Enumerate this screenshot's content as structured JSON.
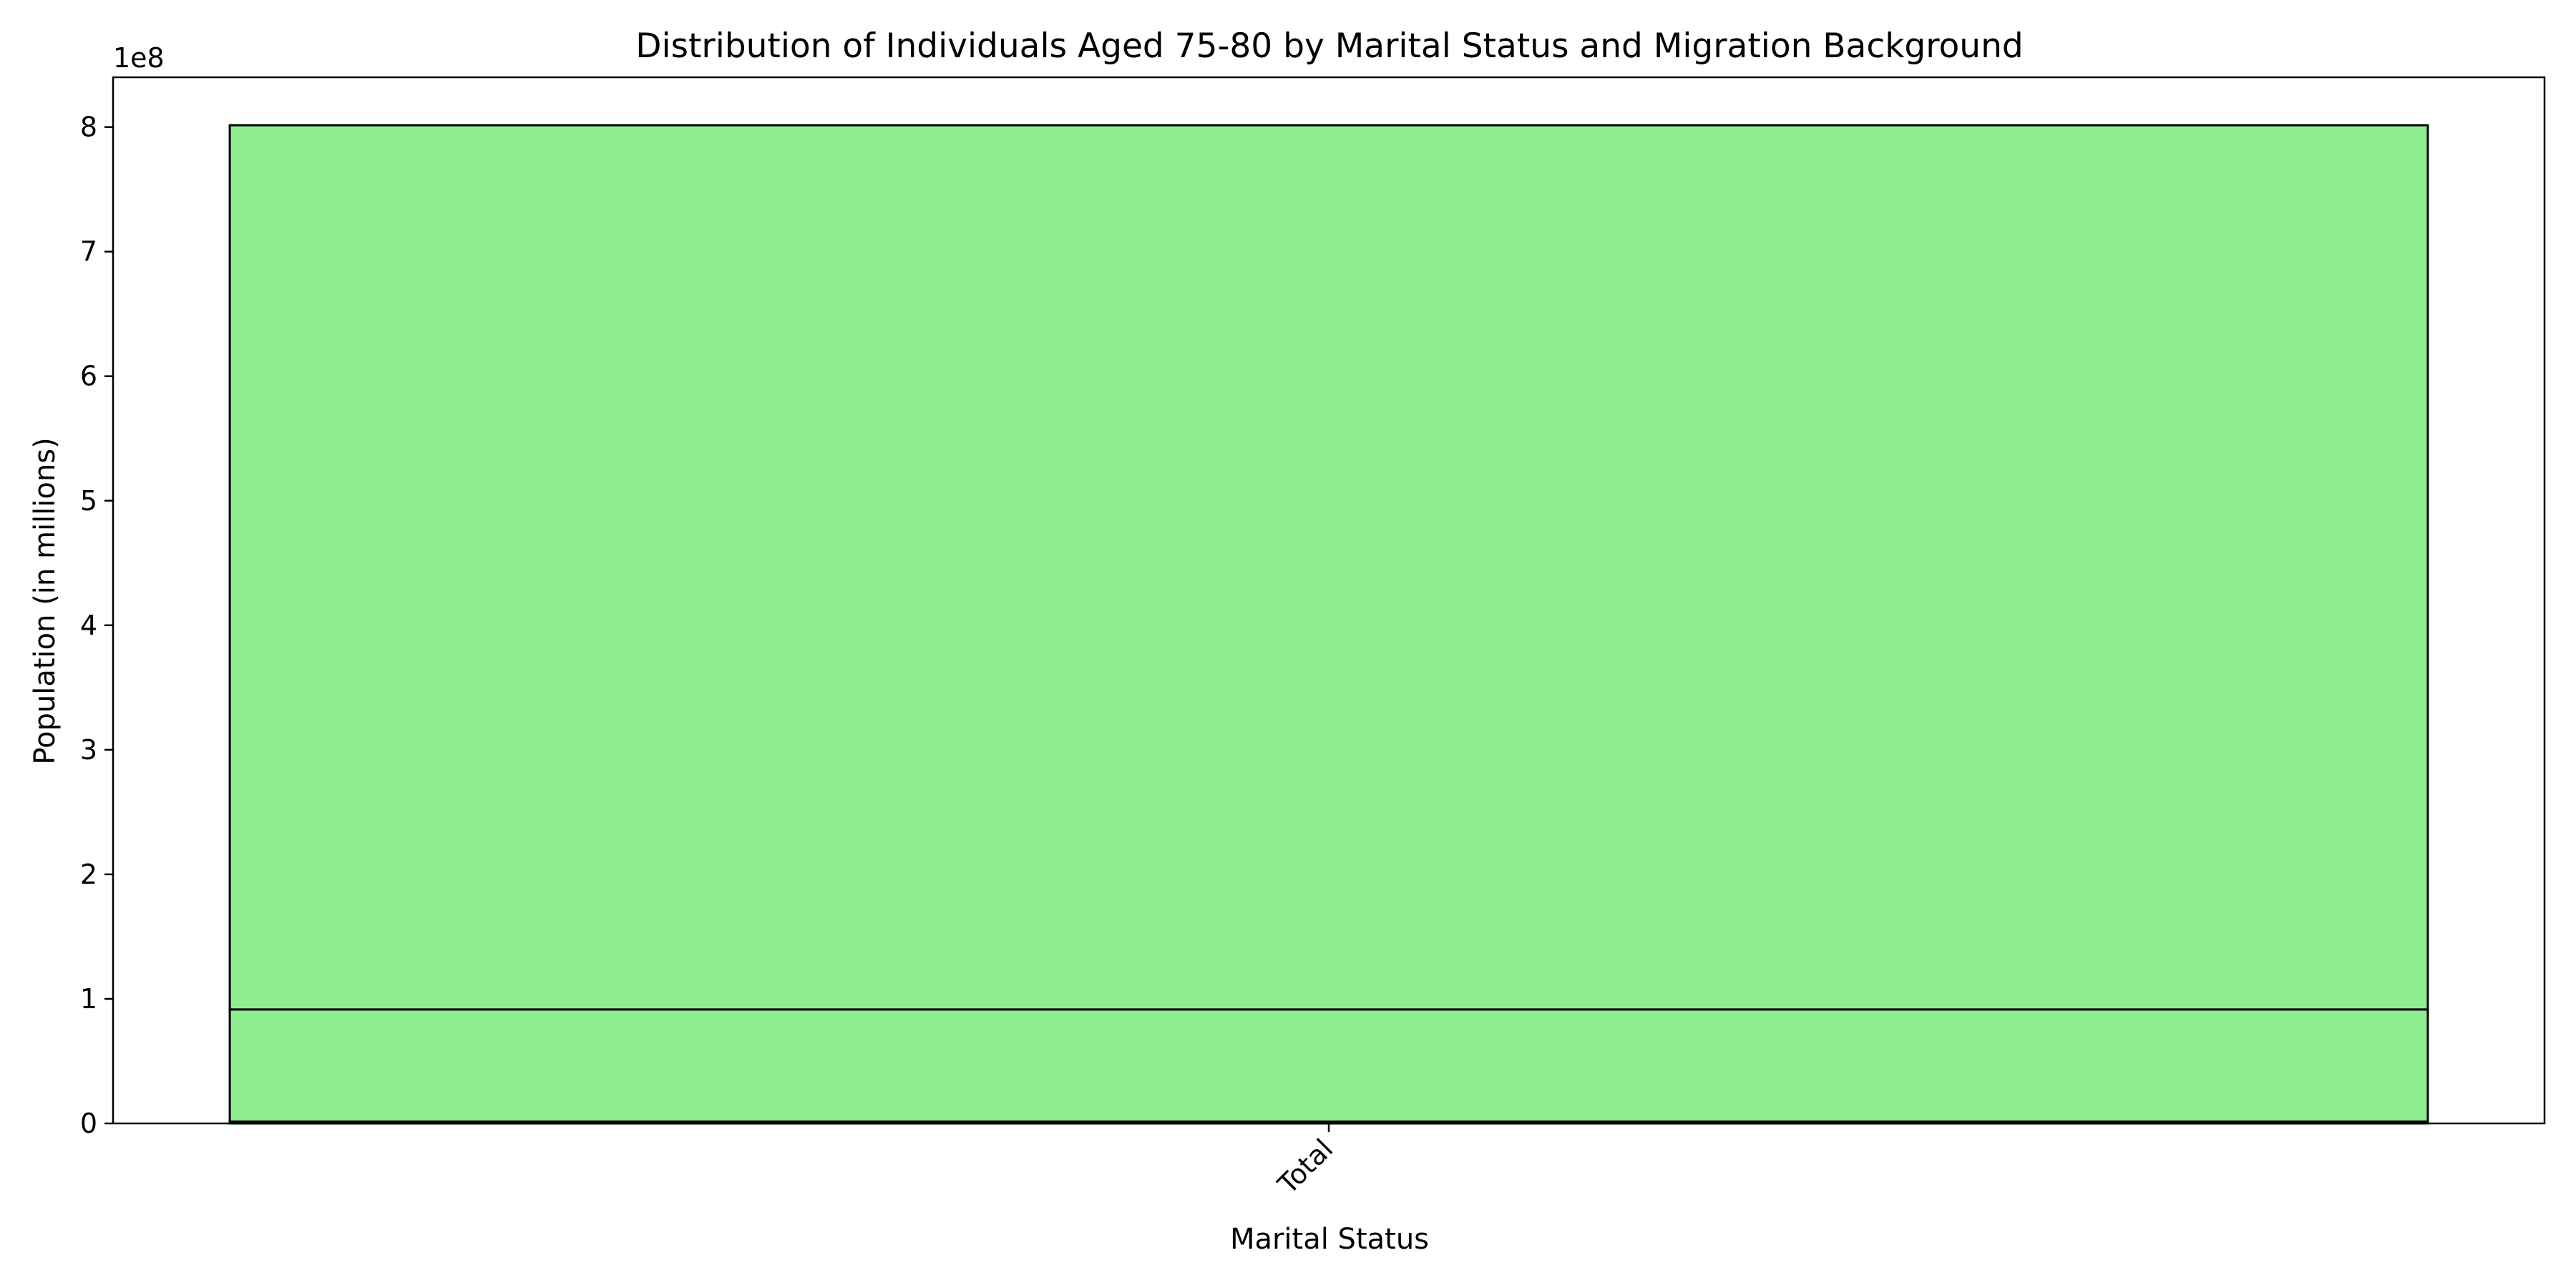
{
  "chart_data": {
    "type": "bar",
    "stacked": true,
    "title": "Distribution of Individuals Aged 75-80 by Marital Status and Migration Background",
    "xlabel": "Marital Status",
    "ylabel": "Population (in millions)",
    "categories": [
      "Total"
    ],
    "series": [
      {
        "values": [
          1500000
        ]
      },
      {
        "values": [
          90000000
        ]
      },
      {
        "values": [
          710000000
        ]
      }
    ],
    "ylim": [
      0,
      840000000
    ],
    "yticks": [
      0,
      100000000,
      200000000,
      300000000,
      400000000,
      500000000,
      600000000,
      700000000,
      800000000
    ],
    "ytick_labels": [
      "0",
      "1",
      "2",
      "3",
      "4",
      "5",
      "6",
      "7",
      "8"
    ],
    "y_offset_label": "1e8",
    "x_tick_rotation": 45,
    "grid": false,
    "colors": {
      "bar_fill": "#90ee90",
      "bar_edge": "#000000",
      "axes": "#000000",
      "background": "#ffffff"
    }
  }
}
